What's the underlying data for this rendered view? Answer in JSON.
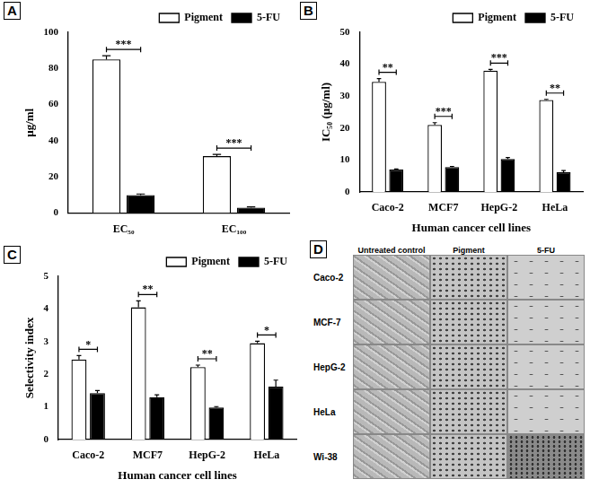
{
  "chart_data": [
    {
      "type": "bar",
      "panel_label": "A",
      "y_label": "µg/ml",
      "categories": [
        "EC₅₀",
        "EC₁₀₀"
      ],
      "series": [
        {
          "name": "Pigment",
          "color": "#ffffff",
          "values": [
            85,
            31.5
          ],
          "errors": [
            2,
            1
          ]
        },
        {
          "name": "5-FU",
          "color": "#000000",
          "values": [
            10,
            3
          ],
          "errors": [
            0.6,
            0.5
          ]
        }
      ],
      "significance": [
        "***",
        "***"
      ],
      "ylim": [
        0,
        100
      ],
      "yticks": [
        0,
        20,
        40,
        60,
        80,
        100
      ],
      "grid": false,
      "legend": "top-right"
    },
    {
      "type": "bar",
      "panel_label": "B",
      "y_label": "IC₅₀ (µg/ml)",
      "x_label": "Human cancer cell lines",
      "categories": [
        "Caco-2",
        "MCF7",
        "HepG-2",
        "HeLa"
      ],
      "series": [
        {
          "name": "Pigment",
          "color": "#ffffff",
          "values": [
            34.5,
            21,
            38,
            28.8
          ],
          "errors": [
            1,
            0.7,
            0.4,
            0.2
          ]
        },
        {
          "name": "5-FU",
          "color": "#000000",
          "values": [
            7,
            7.8,
            10.3,
            6.2
          ],
          "errors": [
            0.2,
            0.2,
            0.5,
            0.5
          ]
        }
      ],
      "significance": [
        "**",
        "***",
        "***",
        "**"
      ],
      "ylim": [
        0,
        50
      ],
      "yticks": [
        0,
        10,
        20,
        30,
        40,
        50
      ],
      "grid": false,
      "legend": "top-right"
    },
    {
      "type": "bar",
      "panel_label": "C",
      "y_label": "Selectivity index",
      "x_label": "Human cancer cell lines",
      "categories": [
        "Caco-2",
        "MCF7",
        "HepG-2",
        "HeLa"
      ],
      "series": [
        {
          "name": "Pigment",
          "color": "#ffffff",
          "values": [
            2.45,
            4.05,
            2.22,
            2.95
          ],
          "errors": [
            0.12,
            0.2,
            0.06,
            0.06
          ]
        },
        {
          "name": "5-FU",
          "color": "#000000",
          "values": [
            1.42,
            1.3,
            0.98,
            1.62
          ],
          "errors": [
            0.08,
            0.07,
            0.03,
            0.2
          ]
        }
      ],
      "significance": [
        "*",
        "**",
        "**",
        "*"
      ],
      "ylim": [
        0,
        5
      ],
      "yticks": [
        0,
        1,
        2,
        3,
        4,
        5
      ],
      "grid": false,
      "legend": "top-right"
    }
  ],
  "image_panel": {
    "panel_label": "D",
    "columns": [
      "Untreated control",
      "Pigment",
      "5-FU"
    ],
    "rows": [
      "Caco-2",
      "MCF-7",
      "HepG-2",
      "HeLa",
      "Wi-38"
    ]
  }
}
